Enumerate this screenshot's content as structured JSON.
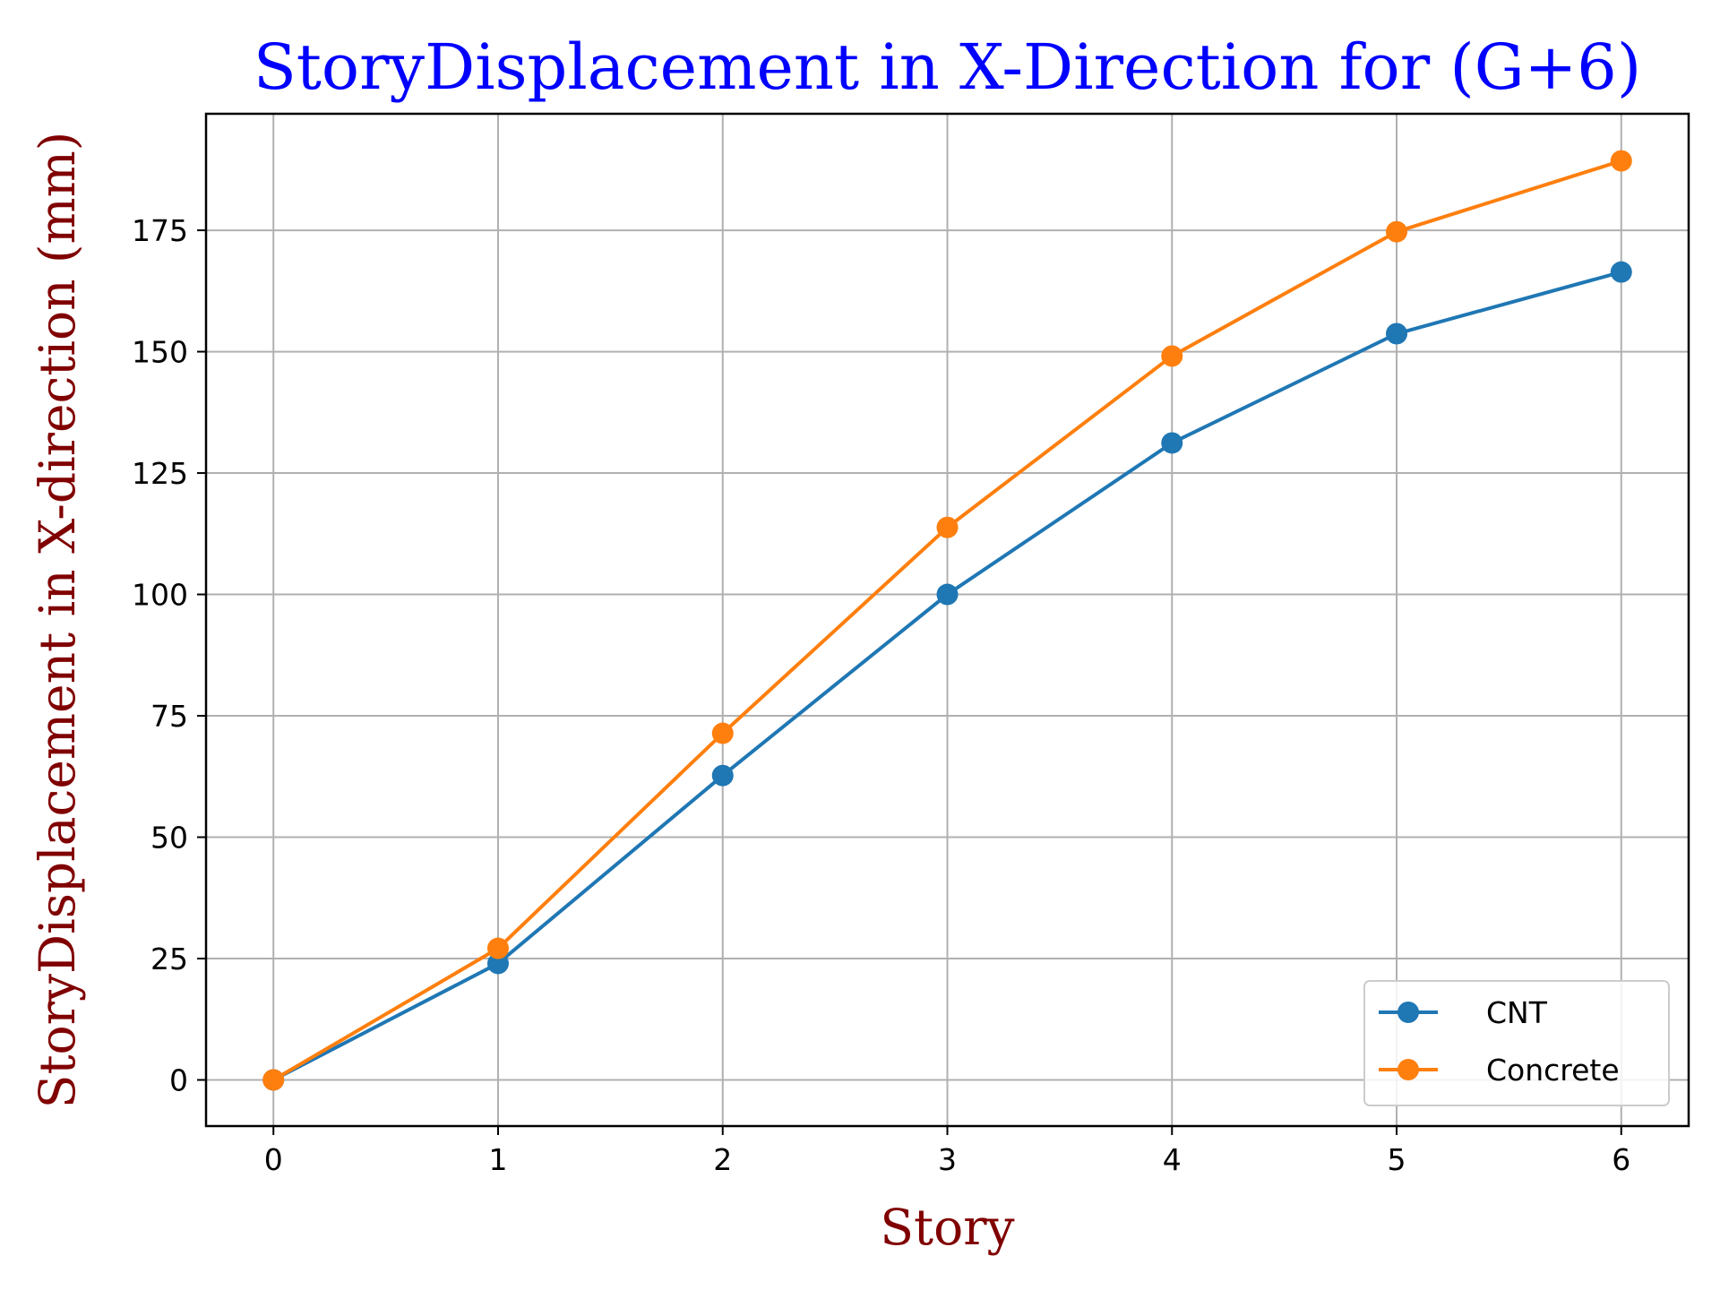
{
  "chart_data": {
    "type": "line",
    "title": "StoryDisplacement in X-Direction for (G+6)",
    "xlabel": "Story",
    "ylabel": "StoryDisplacement in X-direction (mm)",
    "x": [
      0,
      1,
      2,
      3,
      4,
      5,
      6
    ],
    "xlim": [
      -0.3,
      6.3
    ],
    "ylim": [
      -9.5,
      199
    ],
    "xticks": [
      "0",
      "1",
      "2",
      "3",
      "4",
      "5",
      "6"
    ],
    "yticks": [
      "0",
      "25",
      "50",
      "75",
      "100",
      "125",
      "150",
      "175"
    ],
    "grid": true,
    "legend_position": "bottom-right",
    "series": [
      {
        "name": "CNT",
        "color": "#1f77b4",
        "values": [
          0,
          24,
          62.7,
          100,
          131.2,
          153.7,
          166.4
        ]
      },
      {
        "name": "Concrete",
        "color": "#ff7f0e",
        "values": [
          0,
          27.1,
          71.4,
          113.8,
          149.1,
          174.7,
          189.3
        ]
      }
    ],
    "colors": {
      "title": "#0000ff",
      "axis_label": "#800000",
      "grid": "#b0b0b0"
    }
  }
}
